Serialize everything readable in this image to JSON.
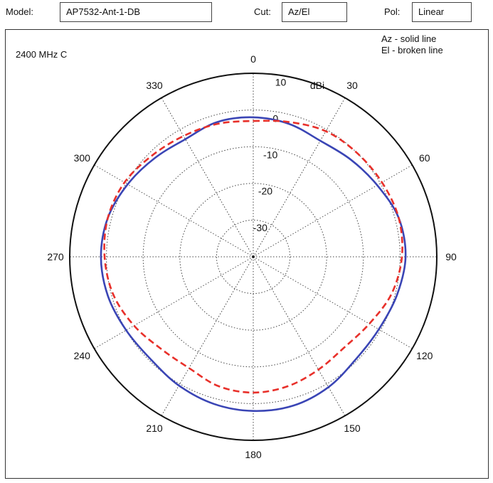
{
  "header": {
    "model_label": "Model:",
    "model_value": "AP7532-Ant-1-DB",
    "cut_label": "Cut:",
    "cut_value": "Az/El",
    "pol_label": "Pol:",
    "pol_value": "Linear"
  },
  "chart_data": {
    "type": "polar-line",
    "title": "2400 MHz C",
    "radial_unit": "dBi",
    "radial_range": [
      -40,
      10
    ],
    "radial_ticks": [
      10,
      0,
      -10,
      -20,
      -30
    ],
    "radial_tick_labels": [
      "10",
      "0",
      "-10",
      "-20",
      "-30"
    ],
    "angle_ticks": [
      0,
      30,
      60,
      90,
      120,
      150,
      180,
      210,
      240,
      270,
      300,
      330
    ],
    "angle_tick_labels": [
      "0",
      "30",
      "60",
      "90",
      "120",
      "150",
      "180",
      "210",
      "240",
      "270",
      "300",
      "330"
    ],
    "legend": [
      "Az - solid line",
      "El - broken line"
    ],
    "series": [
      {
        "style": "solid",
        "color": "#3a45b5",
        "angles": [
          0,
          15,
          30,
          45,
          60,
          75,
          90,
          105,
          120,
          135,
          150,
          165,
          180,
          195,
          210,
          225,
          240,
          255,
          270,
          285,
          300,
          315,
          330,
          345
        ],
        "values": [
          -2,
          -2.5,
          -3.5,
          -2.5,
          -1,
          1,
          1.5,
          0.5,
          -0.5,
          -0.5,
          1,
          2,
          2,
          1.5,
          0.5,
          -0.5,
          0,
          1,
          1.5,
          1,
          -0.5,
          -2,
          -3,
          -2
        ]
      },
      {
        "style": "dashed",
        "color": "#e8302a",
        "angles": [
          0,
          15,
          30,
          45,
          60,
          75,
          90,
          105,
          120,
          135,
          150,
          165,
          180,
          195,
          210,
          225,
          240,
          255,
          270,
          285,
          300,
          315,
          330,
          345
        ],
        "values": [
          -3,
          -2,
          -0.5,
          0,
          0.5,
          1,
          0.5,
          -1,
          -3.5,
          -5,
          -4.5,
          -3.5,
          -3,
          -3.5,
          -5,
          -4.5,
          -2.5,
          -0.5,
          0.5,
          1,
          0.5,
          -1,
          -2,
          -2.5
        ]
      }
    ]
  }
}
